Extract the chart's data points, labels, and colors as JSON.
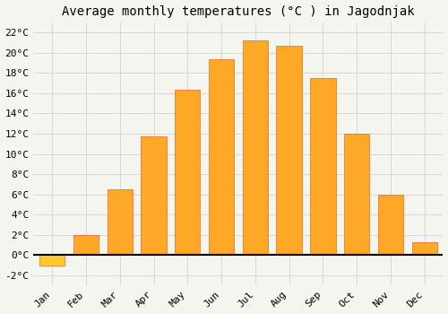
{
  "title": "Average monthly temperatures (°C ) in Jagodnjak",
  "months": [
    "Jan",
    "Feb",
    "Mar",
    "Apr",
    "May",
    "Jun",
    "Jul",
    "Aug",
    "Sep",
    "Oct",
    "Nov",
    "Dec"
  ],
  "values": [
    -1.0,
    2.0,
    6.5,
    11.7,
    16.3,
    19.4,
    21.2,
    20.7,
    17.5,
    12.0,
    6.0,
    1.3
  ],
  "bar_color_positive": "#FFA726",
  "bar_color_negative": "#FFCA28",
  "bar_edge_color": "#E65100",
  "background_color": "#f5f5f0",
  "grid_color": "#d8d8d8",
  "ylim": [
    -3,
    23
  ],
  "yticks": [
    -2,
    0,
    2,
    4,
    6,
    8,
    10,
    12,
    14,
    16,
    18,
    20,
    22
  ],
  "ytick_labels": [
    "-2°C",
    "0°C",
    "2°C",
    "4°C",
    "6°C",
    "8°C",
    "10°C",
    "12°C",
    "14°C",
    "16°C",
    "18°C",
    "20°C",
    "22°C"
  ],
  "title_fontsize": 10,
  "tick_fontsize": 8,
  "font_family": "monospace",
  "bar_width": 0.75
}
